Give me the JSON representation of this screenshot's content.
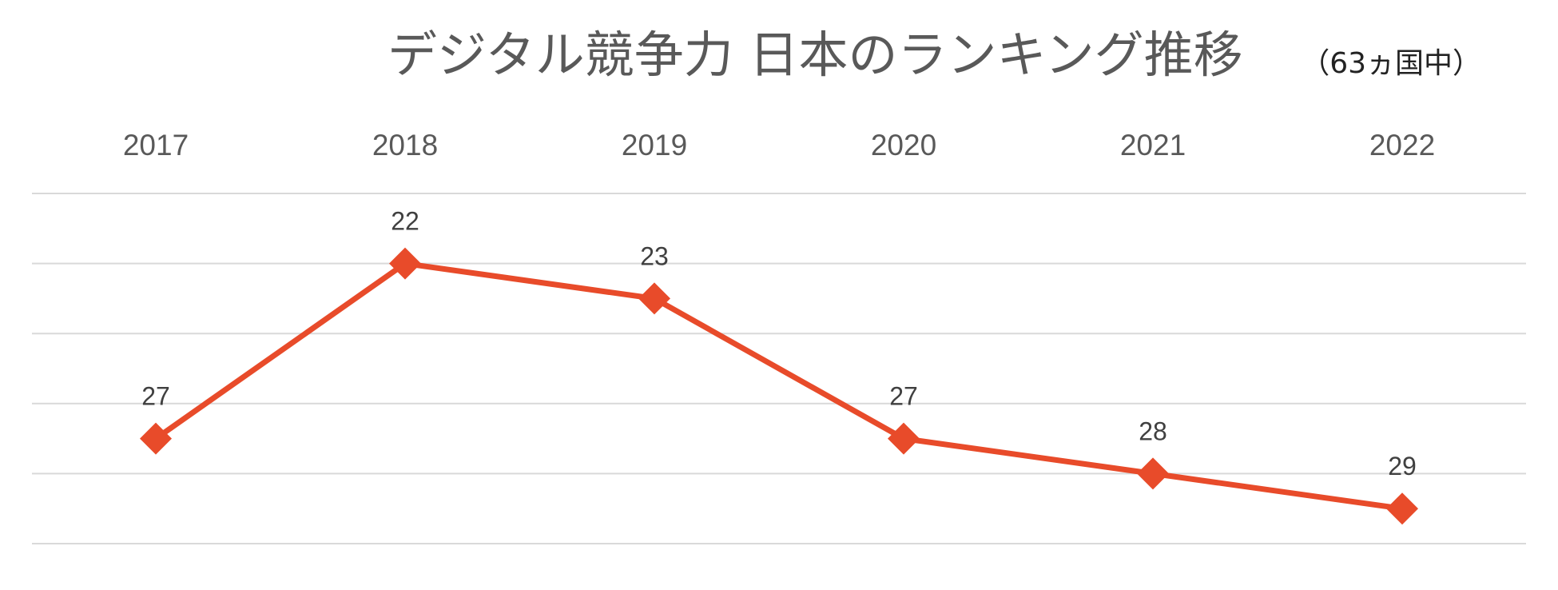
{
  "chart_data": {
    "type": "line",
    "title": "デジタル競争力 日本のランキング推移",
    "subtitle": "（63ヵ国中）",
    "categories": [
      "2017",
      "2018",
      "2019",
      "2020",
      "2021",
      "2022"
    ],
    "series": [
      {
        "name": "",
        "values": [
          27,
          22,
          23,
          27,
          28,
          29
        ],
        "data_labels": [
          "27",
          "22",
          "23",
          "27",
          "28",
          "29"
        ],
        "color": "#E84B2A",
        "marker": "diamond"
      }
    ],
    "y_axis": {
      "reversed": true,
      "range": [
        20,
        30
      ],
      "gridline_step": 2,
      "tick_labels_visible": false
    },
    "x_axis_position": "top",
    "grid": true,
    "legend": "none",
    "colors": {
      "line": "#E84B2A",
      "gridline": "#D9D9D9",
      "title_text": "#595959",
      "label_text": "#404040"
    }
  }
}
